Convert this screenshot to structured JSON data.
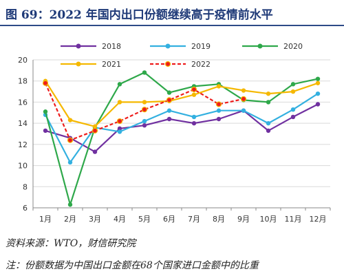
{
  "header": {
    "title": "图 69：2022 年国内出口份额继续高于疫情前水平"
  },
  "source": "资料来源：WTO，财信研究院",
  "note": "注：份额数据为中国出口金额在68个国家进口金额中的比重",
  "chart_data": {
    "type": "line",
    "title": "",
    "xlabel": "",
    "ylabel": "",
    "categories": [
      "1月",
      "2月",
      "3月",
      "4月",
      "5月",
      "6月",
      "7月",
      "8月",
      "9月",
      "10月",
      "11月",
      "12月"
    ],
    "ylim": [
      6,
      20
    ],
    "yticks": [
      6,
      8,
      10,
      12,
      14,
      16,
      18,
      20
    ],
    "grid": true,
    "legend_position": "top",
    "series": [
      {
        "name": "2018",
        "color": "#7030a0",
        "dashed": false,
        "values": [
          13.3,
          12.6,
          11.3,
          13.5,
          13.8,
          14.4,
          14.0,
          14.4,
          15.2,
          13.3,
          14.6,
          15.8
        ]
      },
      {
        "name": "2019",
        "color": "#33b0e0",
        "dashed": false,
        "values": [
          14.8,
          10.3,
          13.6,
          13.2,
          14.2,
          15.2,
          14.6,
          15.2,
          15.2,
          14.0,
          15.3,
          16.8
        ]
      },
      {
        "name": "2020",
        "color": "#2ea84a",
        "dashed": false,
        "values": [
          15.1,
          6.3,
          13.6,
          17.7,
          18.8,
          16.9,
          17.5,
          17.7,
          16.2,
          16.0,
          17.7,
          18.2
        ]
      },
      {
        "name": "2021",
        "color": "#f5b800",
        "dashed": false,
        "values": [
          18.0,
          14.3,
          13.7,
          16.0,
          16.0,
          16.1,
          16.7,
          17.5,
          17.1,
          16.8,
          17.0,
          17.8
        ]
      },
      {
        "name": "2022",
        "color": "#ee1c1c",
        "dashed": true,
        "values": [
          17.8,
          12.4,
          13.3,
          14.2,
          15.3,
          16.2,
          17.2,
          15.8,
          16.3,
          null,
          null,
          null
        ]
      }
    ]
  }
}
